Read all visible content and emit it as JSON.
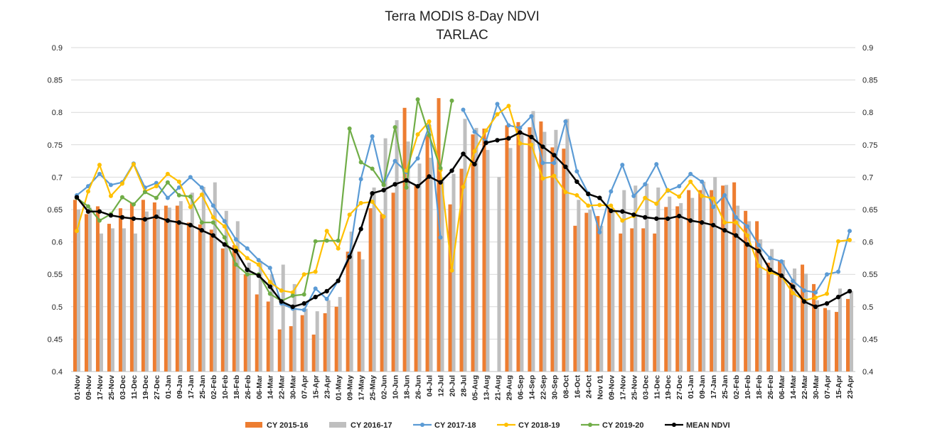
{
  "chart_data": {
    "type": "bar+line",
    "title": "Terra MODIS 8-Day  NDVI",
    "subtitle": "TARLAC",
    "ylim": [
      0.4,
      0.9
    ],
    "yticks": [
      "0.4",
      "0.45",
      "0.5",
      "0.55",
      "0.6",
      "0.65",
      "0.7",
      "0.75",
      "0.8",
      "0.85",
      "0.9"
    ],
    "grid": true,
    "legend_position": "bottom",
    "categories": [
      "01-Nov",
      "09-Nov",
      "17-Nov",
      "25-Nov",
      "03-Dec",
      "11-Dec",
      "19-Dec",
      "27-Dec",
      "01-Jan",
      "09-Jan",
      "17-Jan",
      "25-Jan",
      "02-Feb",
      "10-Feb",
      "18-Feb",
      "26-Feb",
      "06-Mar",
      "14-Mar",
      "22-Mar",
      "30-Mar",
      "07-Apr",
      "15-Apr",
      "23-Apr",
      "01-May",
      "09-May",
      "17-May",
      "25-May",
      "02-Jun",
      "10-Jun",
      "18-Jun",
      "26-Jun",
      "04-Jul",
      "12-Jul",
      "20-Jul",
      "28-Jul",
      "05-Aug",
      "13-Aug",
      "21-Aug",
      "29-Aug",
      "06-Sep",
      "14-Sep",
      "22-Sep",
      "30-Sep",
      "08-Oct",
      "16-Oct",
      "24-Oct",
      "Nov 01",
      "09-Nov",
      "17-Nov",
      "25-Nov",
      "03-Dec",
      "11-Dec",
      "19-Dec",
      "27-Dec",
      "01-Jan",
      "09-Jan",
      "17-Jan",
      "25-Jan",
      "02-Feb",
      "10-Feb",
      "18-Feb",
      "26-Feb",
      "06-Mar",
      "14-Mar",
      "22-Mar",
      "30-Mar",
      "07-Apr",
      "15-Apr",
      "23-Apr"
    ],
    "bar_series": [
      {
        "name": "CY 2015-16",
        "color": "#ed7d31",
        "values": [
          0.665,
          0.643,
          0.655,
          0.628,
          0.652,
          0.66,
          0.665,
          0.661,
          0.656,
          0.656,
          0.63,
          0.627,
          0.619,
          0.59,
          0.595,
          0.55,
          0.519,
          0.508,
          0.465,
          0.47,
          0.487,
          0.457,
          0.49,
          0.5,
          0.585,
          0.585,
          0.652,
          0.643,
          0.676,
          0.807,
          0.688,
          0.765,
          0.822,
          0.658,
          0.713,
          0.766,
          0.775,
          null,
          0.78,
          0.785,
          0.777,
          0.786,
          0.746,
          0.744,
          0.625,
          0.645,
          0.64,
          0.652,
          0.613,
          0.621,
          0.621,
          0.613,
          0.654,
          0.655,
          0.68,
          0.68,
          0.68,
          0.687,
          0.692,
          0.648,
          0.632,
          0.568,
          0.571,
          0.537,
          0.565,
          0.535,
          0.498,
          0.492,
          0.512
        ]
      },
      {
        "name": "CY 2016-17",
        "color": "#bfbfbf",
        "values": [
          0.65,
          0.653,
          0.613,
          0.621,
          0.621,
          0.613,
          0.647,
          0.65,
          0.653,
          0.663,
          0.676,
          0.685,
          0.692,
          0.648,
          0.632,
          0.568,
          0.571,
          0.55,
          0.565,
          0.535,
          0.497,
          0.493,
          0.51,
          0.515,
          0.616,
          0.573,
          0.684,
          0.76,
          0.788,
          0.755,
          0.721,
          0.73,
          0.7,
          0.705,
          0.79,
          0.776,
          0.742,
          0.7,
          0.745,
          0.77,
          0.802,
          0.77,
          0.773,
          0.79,
          0.665,
          0.65,
          0.625,
          0.652,
          0.68,
          0.687,
          0.69,
          0.684,
          0.67,
          0.66,
          0.668,
          0.693,
          0.7,
          0.688,
          0.656,
          0.632,
          0.604,
          0.589,
          0.572,
          0.559,
          0.551,
          0.51,
          0.495,
          0.528,
          0.524
        ]
      }
    ],
    "line_series": [
      {
        "name": "CY 2017-18",
        "color": "#5b9bd5",
        "values": [
          0.672,
          0.686,
          0.705,
          0.688,
          0.692,
          0.721,
          0.684,
          0.691,
          0.668,
          0.684,
          0.7,
          0.684,
          0.656,
          0.632,
          0.604,
          0.59,
          0.572,
          0.56,
          0.505,
          0.497,
          0.495,
          0.528,
          0.512,
          0.54,
          0.58,
          0.697,
          0.763,
          0.689,
          0.725,
          0.708,
          0.729,
          0.779,
          0.607,
          null,
          0.804,
          0.77,
          0.755,
          0.813,
          0.78,
          0.776,
          0.794,
          0.722,
          0.722,
          0.786,
          0.709,
          0.675,
          0.615,
          0.678,
          0.719,
          0.671,
          0.689,
          0.72,
          0.679,
          0.686,
          0.705,
          0.693,
          0.654,
          0.672,
          0.638,
          0.624,
          0.595,
          0.575,
          0.57,
          0.54,
          0.525,
          0.522,
          0.55,
          0.554,
          0.617
        ]
      },
      {
        "name": "CY 2018-19",
        "color": "#ffc000",
        "values": [
          0.617,
          0.678,
          0.719,
          0.671,
          0.69,
          0.72,
          0.678,
          0.686,
          0.705,
          0.693,
          0.654,
          0.673,
          0.638,
          0.624,
          0.591,
          0.575,
          0.565,
          0.538,
          0.525,
          0.522,
          0.55,
          0.554,
          0.617,
          0.59,
          0.642,
          0.66,
          0.662,
          0.639,
          null,
          0.71,
          0.766,
          0.786,
          0.711,
          0.556,
          0.685,
          0.74,
          0.772,
          0.797,
          0.81,
          0.752,
          0.75,
          0.698,
          0.702,
          0.677,
          0.672,
          0.656,
          0.657,
          0.656,
          0.633,
          0.64,
          0.668,
          0.659,
          0.68,
          0.67,
          0.693,
          0.671,
          0.667,
          0.63,
          0.63,
          0.61,
          0.563,
          0.553,
          0.547,
          0.521,
          0.51,
          0.514,
          0.52,
          0.601,
          0.603
        ]
      },
      {
        "name": "CY 2019-20",
        "color": "#70ad47",
        "values": [
          0.668,
          0.655,
          0.633,
          0.643,
          0.669,
          0.658,
          0.677,
          0.668,
          0.692,
          0.672,
          0.67,
          0.63,
          0.63,
          0.607,
          0.565,
          0.55,
          0.55,
          0.52,
          0.509,
          0.517,
          0.519,
          0.601,
          0.602,
          0.602,
          0.775,
          0.723,
          0.713,
          0.688,
          0.777,
          0.684,
          0.82,
          0.765,
          0.714,
          0.818
        ]
      },
      {
        "name": "MEAN NDVI",
        "color": "#000000",
        "values": [
          0.669,
          0.647,
          0.647,
          0.641,
          0.638,
          0.636,
          0.635,
          0.639,
          0.633,
          0.63,
          0.626,
          0.618,
          0.61,
          0.596,
          0.586,
          0.557,
          0.548,
          0.531,
          0.508,
          0.5,
          0.505,
          0.515,
          0.524,
          0.54,
          0.577,
          0.62,
          0.675,
          0.68,
          0.689,
          0.695,
          0.686,
          0.701,
          0.692,
          0.71,
          0.736,
          0.72,
          0.753,
          0.757,
          0.76,
          0.769,
          0.762,
          0.747,
          0.734,
          0.716,
          0.693,
          0.674,
          0.668,
          0.648,
          0.647,
          0.642,
          0.638,
          0.636,
          0.636,
          0.64,
          0.633,
          0.63,
          0.626,
          0.618,
          0.61,
          0.596,
          0.586,
          0.557,
          0.548,
          0.531,
          0.508,
          0.5,
          0.505,
          0.515,
          0.524
        ]
      }
    ]
  }
}
